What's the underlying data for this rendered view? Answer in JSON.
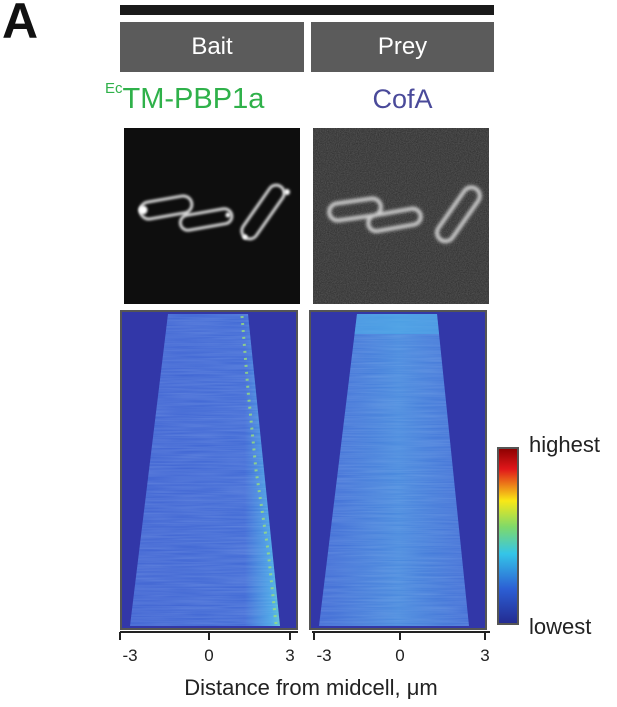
{
  "figure": {
    "panel_letter": "A",
    "columns": {
      "bait": {
        "header": "Bait",
        "protein_superscript": "Ec",
        "protein": "TM-PBP1a",
        "color": "#2fb14a"
      },
      "prey": {
        "header": "Prey",
        "protein": "CofA",
        "color": "#4a4a9a"
      }
    },
    "colorbar": {
      "high_label": "highest",
      "low_label": "lowest"
    },
    "x_axis": {
      "ticks": [
        "-3",
        "0",
        "3"
      ],
      "label": "Distance from midcell, μm"
    }
  }
}
